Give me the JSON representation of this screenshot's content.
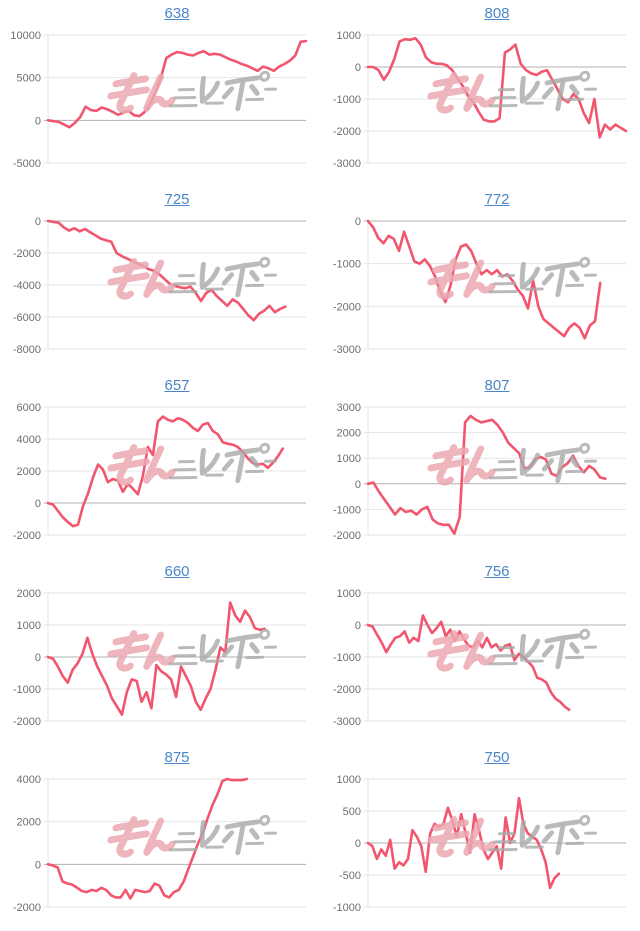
{
  "page": {
    "background": "#ffffff",
    "description_labels": []
  },
  "style": {
    "line_color": "#f2566f",
    "grid_color": "#e6e6e6",
    "zero_line_color": "#b0b0b0",
    "axis_label_color": "#6e6e6e",
    "link_color": "#4a86c8",
    "watermark_pink": "#eba9b1",
    "watermark_gray": "#a9a9a9"
  },
  "watermark": {
    "text": "みんレポ",
    "text_pink": "みん",
    "text_gray": "レポ"
  },
  "chart_data": [
    {
      "type": "line",
      "title": "638",
      "yticks": [
        10000,
        5000,
        0,
        -5000
      ],
      "ylim": [
        -5000,
        10000
      ],
      "grid": true,
      "legend": "none",
      "x_span": 1.0,
      "values": [
        0,
        -100,
        -200,
        -500,
        -800,
        -300,
        400,
        1600,
        1200,
        1100,
        1500,
        1300,
        1000,
        650,
        900,
        1100,
        600,
        500,
        1000,
        1900,
        3300,
        5000,
        7300,
        7700,
        8000,
        7900,
        7700,
        7600,
        7900,
        8100,
        7700,
        7800,
        7700,
        7400,
        7100,
        6900,
        6600,
        6400,
        6100,
        5800,
        6300,
        6100,
        5800,
        6300,
        6600,
        7000,
        7600,
        9200,
        9300
      ]
    },
    {
      "type": "line",
      "title": "808",
      "yticks": [
        1000,
        0,
        -1000,
        -2000,
        -3000
      ],
      "ylim": [
        -3000,
        1000
      ],
      "grid": true,
      "legend": "none",
      "x_span": 1.0,
      "values": [
        0,
        0,
        -100,
        -400,
        -150,
        250,
        800,
        870,
        850,
        900,
        700,
        300,
        150,
        100,
        100,
        50,
        -100,
        -350,
        -600,
        -900,
        -1100,
        -1400,
        -1650,
        -1700,
        -1700,
        -1600,
        450,
        550,
        700,
        100,
        -100,
        -200,
        -250,
        -150,
        -100,
        -400,
        -700,
        -1000,
        -1100,
        -850,
        -1000,
        -1450,
        -1750,
        -1000,
        -2200,
        -1800,
        -1950,
        -1800,
        -1900,
        -2000
      ]
    },
    {
      "type": "line",
      "title": "725",
      "yticks": [
        0,
        -2000,
        -4000,
        -6000,
        -8000
      ],
      "ylim": [
        -8000,
        0
      ],
      "grid": true,
      "legend": "none",
      "x_span": 0.92,
      "values": [
        0,
        -50,
        -100,
        -400,
        -600,
        -450,
        -650,
        -500,
        -700,
        -900,
        -1100,
        -1200,
        -1300,
        -2000,
        -2200,
        -2350,
        -2500,
        -2650,
        -2800,
        -3000,
        -3100,
        -3300,
        -3600,
        -3900,
        -4050,
        -4150,
        -4200,
        -4100,
        -4500,
        -5000,
        -4500,
        -4300,
        -4700,
        -5000,
        -5300,
        -4900,
        -5100,
        -5500,
        -5900,
        -6200,
        -5800,
        -5600,
        -5300,
        -5700,
        -5500,
        -5350
      ]
    },
    {
      "type": "line",
      "title": "772",
      "yticks": [
        0,
        -1000,
        -2000,
        -3000
      ],
      "ylim": [
        -3000,
        0
      ],
      "grid": true,
      "legend": "none",
      "x_span": 0.9,
      "values": [
        0,
        -150,
        -400,
        -520,
        -350,
        -420,
        -700,
        -250,
        -600,
        -950,
        -1000,
        -900,
        -1050,
        -1300,
        -1650,
        -1900,
        -1500,
        -900,
        -600,
        -550,
        -700,
        -1000,
        -1250,
        -1150,
        -1250,
        -1150,
        -1300,
        -1250,
        -1400,
        -1600,
        -1750,
        -2050,
        -1400,
        -2000,
        -2300,
        -2400,
        -2500,
        -2600,
        -2700,
        -2500,
        -2400,
        -2500,
        -2750,
        -2450,
        -2350,
        -1450
      ]
    },
    {
      "type": "line",
      "title": "657",
      "yticks": [
        6000,
        4000,
        2000,
        0,
        -2000
      ],
      "ylim": [
        -2000,
        6000
      ],
      "grid": true,
      "legend": "none",
      "x_span": 0.91,
      "values": [
        0,
        -100,
        -500,
        -900,
        -1200,
        -1450,
        -1350,
        -200,
        600,
        1600,
        2400,
        2100,
        1300,
        1500,
        1400,
        700,
        1200,
        900,
        550,
        1700,
        3500,
        3000,
        5100,
        5400,
        5200,
        5100,
        5300,
        5200,
        5000,
        4700,
        4500,
        4900,
        5000,
        4500,
        4300,
        3800,
        3700,
        3650,
        3500,
        3200,
        2800,
        2500,
        2400,
        2450,
        2200,
        2500,
        2900,
        3400
      ]
    },
    {
      "type": "line",
      "title": "807",
      "yticks": [
        3000,
        2000,
        1000,
        0,
        -1000,
        -2000
      ],
      "ylim": [
        -2000,
        3000
      ],
      "grid": true,
      "legend": "none",
      "x_span": 0.92,
      "values": [
        0,
        50,
        -300,
        -600,
        -900,
        -1200,
        -950,
        -1100,
        -1050,
        -1200,
        -1000,
        -900,
        -1400,
        -1550,
        -1600,
        -1600,
        -1950,
        -1300,
        2400,
        2650,
        2500,
        2400,
        2450,
        2500,
        2300,
        2000,
        1600,
        1400,
        1200,
        600,
        650,
        950,
        1050,
        950,
        400,
        300,
        650,
        800,
        1100,
        700,
        450,
        700,
        550,
        250,
        200
      ]
    },
    {
      "type": "line",
      "title": "660",
      "yticks": [
        2000,
        1000,
        0,
        -1000,
        -2000
      ],
      "ylim": [
        -2000,
        2000
      ],
      "grid": true,
      "legend": "none",
      "x_span": 0.84,
      "values": [
        0,
        -50,
        -300,
        -600,
        -800,
        -400,
        -200,
        100,
        600,
        100,
        -300,
        -600,
        -900,
        -1300,
        -1550,
        -1800,
        -1100,
        -700,
        -750,
        -1400,
        -1100,
        -1600,
        -250,
        -450,
        -550,
        -700,
        -1250,
        -300,
        -600,
        -900,
        -1400,
        -1650,
        -1300,
        -1000,
        -400,
        300,
        150,
        1700,
        1300,
        1100,
        1450,
        1250,
        900,
        850,
        880
      ]
    },
    {
      "type": "line",
      "title": "756",
      "yticks": [
        1000,
        0,
        -1000,
        -2000,
        -3000
      ],
      "ylim": [
        -3000,
        1000
      ],
      "grid": true,
      "legend": "none",
      "x_span": 0.78,
      "values": [
        0,
        -50,
        -300,
        -550,
        -850,
        -600,
        -400,
        -350,
        -200,
        -550,
        -400,
        -500,
        300,
        0,
        -250,
        -100,
        100,
        -350,
        -150,
        -500,
        -200,
        -450,
        -650,
        -700,
        -500,
        -700,
        -400,
        -700,
        -600,
        -800,
        -650,
        -600,
        -1100,
        -900,
        -1000,
        -1150,
        -1300,
        -1650,
        -1700,
        -1800,
        -2100,
        -2300,
        -2400,
        -2550,
        -2650
      ]
    },
    {
      "type": "line",
      "title": "875",
      "yticks": [
        4000,
        2000,
        0,
        -2000
      ],
      "ylim": [
        -2000,
        4000
      ],
      "grid": true,
      "legend": "none",
      "x_span": 0.77,
      "values": [
        0,
        -50,
        -150,
        -800,
        -900,
        -950,
        -1100,
        -1250,
        -1300,
        -1200,
        -1250,
        -1100,
        -1200,
        -1450,
        -1550,
        -1550,
        -1200,
        -1600,
        -1200,
        -1250,
        -1300,
        -1250,
        -900,
        -1000,
        -1450,
        -1550,
        -1300,
        -1200,
        -800,
        -200,
        400,
        1000,
        1500,
        2200,
        2800,
        3300,
        3900,
        4000,
        3950,
        3950,
        3950,
        4000
      ]
    },
    {
      "type": "line",
      "title": "750",
      "yticks": [
        1000,
        500,
        0,
        -500,
        -1000
      ],
      "ylim": [
        -1000,
        1000
      ],
      "grid": true,
      "legend": "none",
      "x_span": 0.74,
      "values": [
        0,
        -50,
        -250,
        -100,
        -200,
        50,
        -400,
        -300,
        -350,
        -250,
        200,
        100,
        -50,
        -450,
        150,
        300,
        250,
        300,
        550,
        350,
        100,
        450,
        150,
        -150,
        450,
        200,
        -100,
        -250,
        -150,
        -50,
        -400,
        400,
        0,
        150,
        700,
        300,
        150,
        100,
        50,
        -100,
        -300,
        -700,
        -550,
        -480
      ]
    }
  ]
}
